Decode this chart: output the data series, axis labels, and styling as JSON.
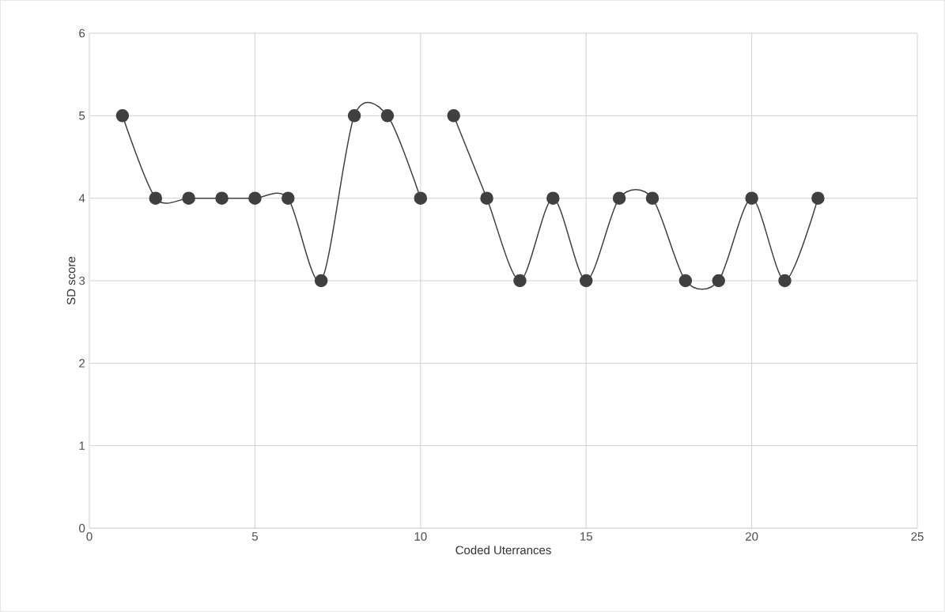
{
  "chart_data": {
    "type": "line",
    "xlabel": "Coded Uterrances",
    "ylabel": "SD score",
    "xlim": [
      0,
      25
    ],
    "xticks": [
      0,
      5,
      10,
      15,
      20,
      25
    ],
    "ylim": [
      0,
      6
    ],
    "yticks": [
      0,
      1,
      2,
      3,
      4,
      5,
      6
    ],
    "grid": true,
    "marker": "circle",
    "line_style": "solid",
    "series": [
      {
        "color": "#404040",
        "x": [
          1,
          2,
          3,
          4,
          5,
          6,
          7,
          8,
          9,
          10
        ],
        "values": [
          5,
          4,
          4,
          4,
          4,
          4,
          3,
          5,
          5,
          4
        ]
      },
      {
        "color": "#404040",
        "x": [
          11,
          12,
          13,
          14,
          15,
          16,
          17,
          18,
          19,
          20,
          21,
          22
        ],
        "values": [
          5,
          4,
          3,
          4,
          3,
          4,
          4,
          3,
          3,
          4,
          3,
          4
        ]
      }
    ]
  }
}
